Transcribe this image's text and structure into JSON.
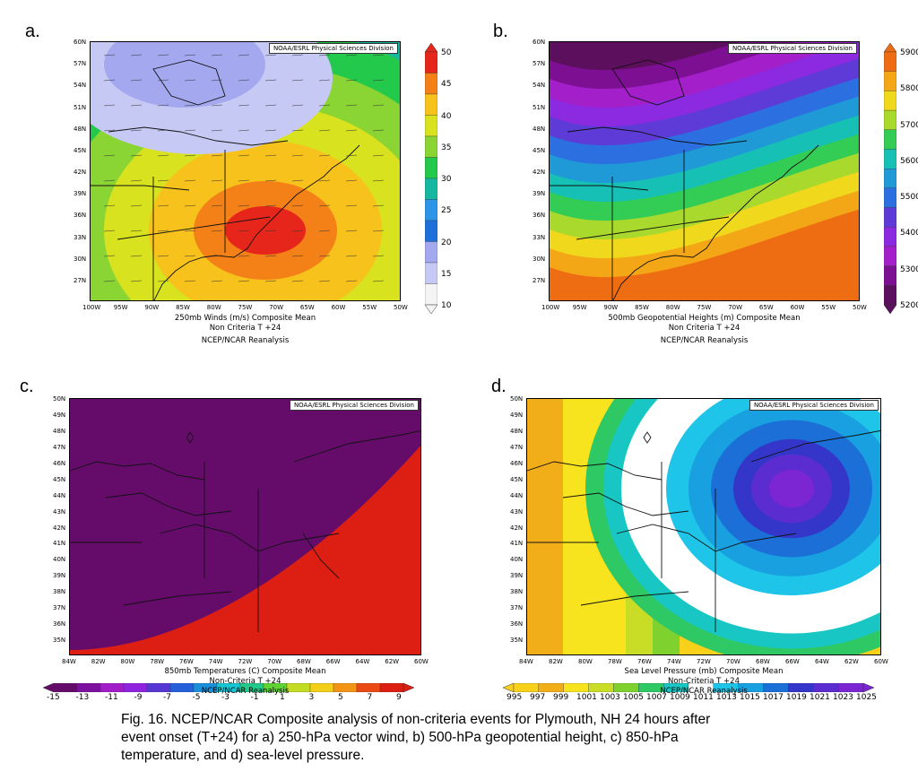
{
  "credit": "NOAA/ESRL Physical Sciences Division",
  "panels": {
    "a": {
      "letter": "a.",
      "title": "250mb Winds (m/s)    Composite Mean",
      "subtitle": "Non Criteria T +24",
      "source": "NCEP/NCAR Reanalysis",
      "lon_ticks": [
        "100W",
        "95W",
        "90W",
        "85W",
        "80W",
        "75W",
        "70W",
        "65W",
        "60W",
        "55W",
        "50W"
      ],
      "lat_ticks": [
        "60N",
        "57N",
        "54N",
        "51N",
        "48N",
        "45N",
        "42N",
        "39N",
        "36N",
        "33N",
        "30N",
        "27N"
      ],
      "colorbar": [
        "50",
        "45",
        "40",
        "35",
        "30",
        "25",
        "20",
        "15",
        "10"
      ]
    },
    "b": {
      "letter": "b.",
      "title": "500mb Geopotential Heights (m)    Composite Mean",
      "subtitle": "Non Criteria T +24",
      "source": "NCEP/NCAR Reanalysis",
      "lon_ticks": [
        "100W",
        "95W",
        "90W",
        "85W",
        "80W",
        "75W",
        "70W",
        "65W",
        "60W",
        "55W",
        "50W"
      ],
      "lat_ticks": [
        "60N",
        "57N",
        "54N",
        "51N",
        "48N",
        "45N",
        "42N",
        "39N",
        "36N",
        "33N",
        "30N",
        "27N"
      ],
      "colorbar": [
        "5900",
        "5800",
        "5700",
        "5600",
        "5500",
        "5400",
        "5300",
        "5200"
      ]
    },
    "c": {
      "letter": "c.",
      "title": "850mb Temperatures (C)    Composite Mean",
      "subtitle": "Non-Criteria T +24",
      "source": "NCEP/NCAR Reanalysis",
      "lon_ticks": [
        "84W",
        "82W",
        "80W",
        "78W",
        "76W",
        "74W",
        "72W",
        "70W",
        "68W",
        "66W",
        "64W",
        "62W",
        "60W"
      ],
      "lat_ticks": [
        "50N",
        "49N",
        "48N",
        "47N",
        "46N",
        "45N",
        "44N",
        "43N",
        "42N",
        "41N",
        "40N",
        "39N",
        "38N",
        "37N",
        "36N",
        "35N"
      ],
      "colorbar": [
        "-15",
        "-13",
        "-11",
        "-9",
        "-7",
        "-5",
        "-3",
        "-1",
        "1",
        "3",
        "5",
        "7",
        "9"
      ]
    },
    "d": {
      "letter": "d.",
      "title": "Sea Level Pressure (mb)    Composite Mean",
      "subtitle": "Non-Criteria T +24",
      "source": "NCEP/NCAR Reanalysis",
      "lon_ticks": [
        "84W",
        "82W",
        "80W",
        "78W",
        "76W",
        "74W",
        "72W",
        "70W",
        "68W",
        "66W",
        "64W",
        "62W",
        "60W"
      ],
      "lat_ticks": [
        "50N",
        "49N",
        "48N",
        "47N",
        "46N",
        "45N",
        "44N",
        "43N",
        "42N",
        "41N",
        "40N",
        "39N",
        "38N",
        "37N",
        "36N",
        "35N"
      ],
      "colorbar": [
        "995",
        "997",
        "999",
        "1001",
        "1003",
        "1005",
        "1007",
        "1009",
        "1011",
        "1013",
        "1015",
        "1017",
        "1019",
        "1021",
        "1023",
        "1025"
      ]
    }
  },
  "figure_caption": [
    "Fig. 16.  NCEP/NCAR Composite analysis of non-criteria events for Plymouth, NH 24 hours after",
    "event onset (T+24) for a) 250-hPa vector wind, b) 500-hPa geopotential height, c) 850-hPa",
    "temperature, and d) sea-level pressure."
  ],
  "colors": {
    "panel_a": [
      "#f4f4f4",
      "#c7c9f5",
      "#a4a8ef",
      "#1e6fd9",
      "#2c95e8",
      "#16b7a0",
      "#22c94a",
      "#8ad433",
      "#d8e21e",
      "#f7c21c",
      "#f48018",
      "#e6261b"
    ],
    "panel_b": [
      "#5c0f5c",
      "#7d0f92",
      "#a21fc9",
      "#8b2ae0",
      "#5e3bd6",
      "#2c6fe0",
      "#1f9ad6",
      "#17c0b5",
      "#33cc55",
      "#a8d92c",
      "#f0d81c",
      "#f3a616",
      "#ee6d12"
    ],
    "panel_c": [
      "#650c6b",
      "#7e10a0",
      "#a21dc8",
      "#8f23df",
      "#5737d4",
      "#2560db",
      "#1a90dc",
      "#16c6d3",
      "#22c98a",
      "#5fd331",
      "#c3dc23",
      "#f2d01a",
      "#f29517",
      "#ec4a14",
      "#dd1e12"
    ],
    "panel_d": [
      "#f9d01a",
      "#f2ae18",
      "#f7e41f",
      "#c9dc26",
      "#7fd22e",
      "#2ec865",
      "#18c7c3",
      "#ffffff",
      "#1ec5e8",
      "#19a0e0",
      "#1b6fd7",
      "#3436c9",
      "#5b2ccf",
      "#7c25d2"
    ]
  }
}
